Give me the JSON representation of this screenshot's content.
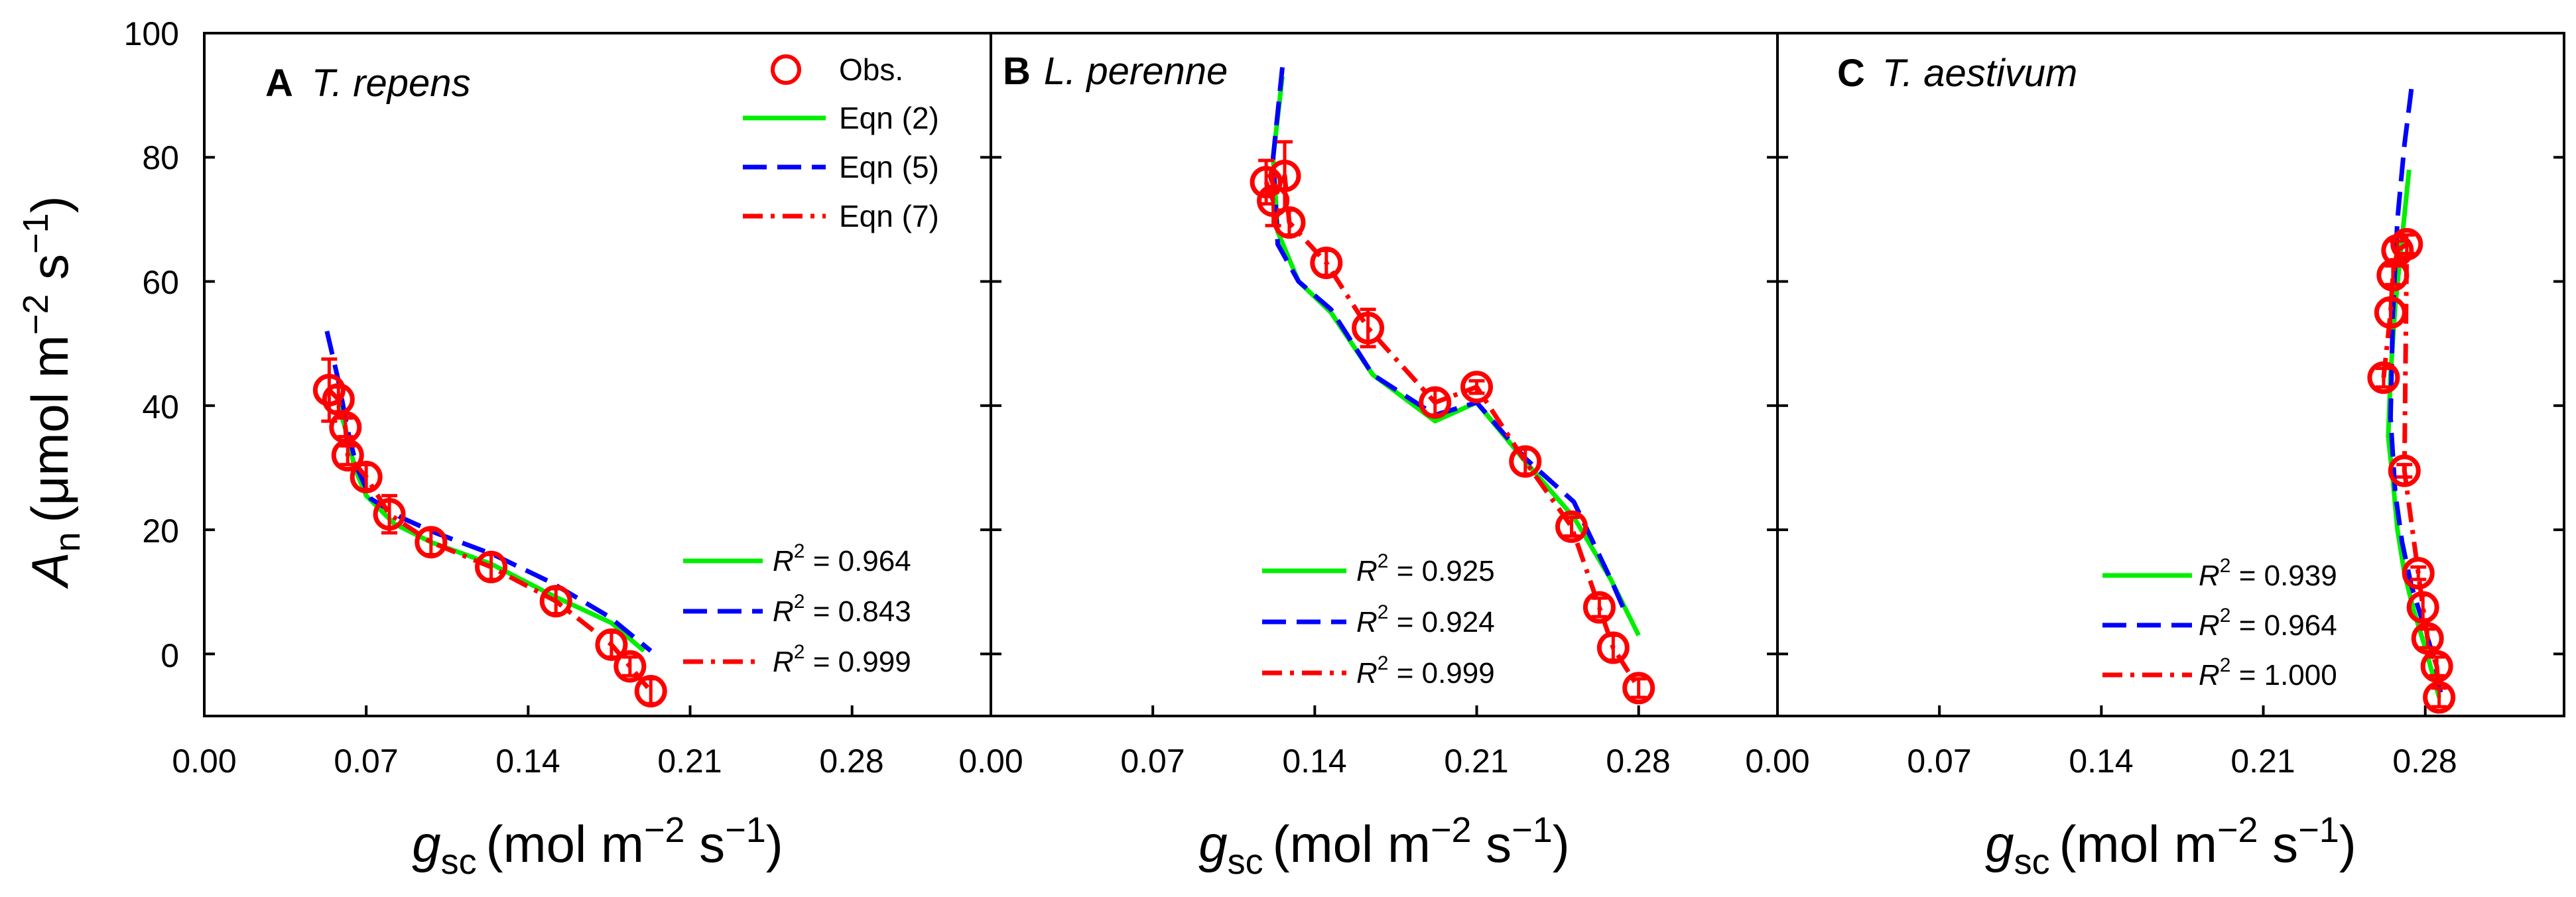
{
  "colors": {
    "obs": "#ff0000",
    "eqn2": "#00ee00",
    "eqn5": "#0000ff",
    "eqn7": "#ff0000",
    "frame": "#000000"
  },
  "legend": {
    "obs": "Obs.",
    "eqn2": "Eqn (2)",
    "eqn5": "Eqn (5)",
    "eqn7": "Eqn (7)"
  },
  "y_axis": {
    "label_symbol": "A",
    "label_sub": "n",
    "label_unit_pre": "(μmol m",
    "label_unit_sup1": "−2",
    "label_unit_mid": " s",
    "label_unit_sup2": "−1",
    "label_unit_post": ")",
    "ticks": [
      "100",
      "80",
      "60",
      "40",
      "20",
      "0"
    ]
  },
  "x_axis": {
    "label_symbol": "g",
    "label_sub": "sc",
    "label_unit_pre": "(mol m",
    "label_unit_sup1": "−2",
    "label_unit_mid": " s",
    "label_unit_sup2": "−1",
    "label_unit_post": ")",
    "ticks": [
      "0.00",
      "0.07",
      "0.14",
      "0.21",
      "0.28"
    ]
  },
  "panels": [
    {
      "letter": "A",
      "species": "T. repens",
      "r2": [
        {
          "prefix": "R",
          "sup": "2",
          "value": " = 0.964"
        },
        {
          "prefix": "R",
          "sup": "2",
          "value": " = 0.843"
        },
        {
          "prefix": "R",
          "sup": "2",
          "value": " = 0.999"
        }
      ]
    },
    {
      "letter": "B",
      "species": "L. perenne",
      "r2": [
        {
          "prefix": "R",
          "sup": "2",
          "value": " = 0.925"
        },
        {
          "prefix": "R",
          "sup": "2",
          "value": " = 0.924"
        },
        {
          "prefix": "R",
          "sup": "2",
          "value": " = 0.999"
        }
      ]
    },
    {
      "letter": "C",
      "species": "T. aestivum",
      "r2": [
        {
          "prefix": "R",
          "sup": "2",
          "value": " = 0.939"
        },
        {
          "prefix": "R",
          "sup": "2",
          "value": " = 0.964"
        },
        {
          "prefix": "R",
          "sup": "2",
          "value": " = 1.000"
        }
      ]
    }
  ],
  "chart_data": [
    {
      "type": "scatter",
      "title": "A T. repens",
      "xlabel": "g_sc (mol m^-2 s^-1)",
      "ylabel": "A_n (μmol m^-2 s^-1)",
      "xlim": [
        0,
        0.34
      ],
      "ylim": [
        -10,
        100
      ],
      "series": [
        {
          "name": "Obs.",
          "x": [
            0.054,
            0.058,
            0.061,
            0.062,
            0.07,
            0.08,
            0.098,
            0.124,
            0.152,
            0.176,
            0.184,
            0.193
          ],
          "y": [
            42.5,
            41.0,
            36.5,
            32.0,
            28.5,
            22.5,
            18.0,
            14.0,
            8.5,
            1.5,
            -2.0,
            -6.0
          ],
          "err": [
            5.0,
            2.0,
            1.5,
            1.5,
            2.0,
            3.0,
            2.0,
            2.0,
            2.0,
            2.0,
            1.5,
            2.0
          ]
        },
        {
          "name": "Eqn (2)",
          "x": [
            0.058,
            0.062,
            0.065,
            0.07,
            0.082,
            0.098,
            0.124,
            0.15,
            0.176,
            0.19
          ],
          "y": [
            40.0,
            35.0,
            30.0,
            25.5,
            21.0,
            18.0,
            14.5,
            9.5,
            5.0,
            0.5
          ]
        },
        {
          "name": "Eqn (5)",
          "x": [
            0.053,
            0.058,
            0.062,
            0.066,
            0.072,
            0.085,
            0.1,
            0.125,
            0.15,
            0.175,
            0.193
          ],
          "y": [
            52.0,
            44.0,
            36.0,
            30.0,
            25.0,
            22.0,
            19.5,
            16.0,
            11.5,
            6.0,
            0.5
          ]
        },
        {
          "name": "Eqn (7)",
          "x": [
            0.054,
            0.058,
            0.061,
            0.062,
            0.07,
            0.08,
            0.098,
            0.124,
            0.152,
            0.176,
            0.184,
            0.193
          ],
          "y": [
            42.5,
            41.0,
            36.5,
            32.0,
            28.5,
            22.5,
            18.0,
            14.0,
            8.5,
            1.5,
            -2.0,
            -6.0
          ]
        }
      ]
    },
    {
      "type": "scatter",
      "title": "B L. perenne",
      "xlabel": "g_sc (mol m^-2 s^-1)",
      "ylabel": "A_n (μmol m^-2 s^-1)",
      "xlim": [
        0,
        0.34
      ],
      "ylim": [
        -10,
        100
      ],
      "series": [
        {
          "name": "Obs.",
          "x": [
            0.119,
            0.122,
            0.127,
            0.129,
            0.145,
            0.163,
            0.192,
            0.21,
            0.231,
            0.251,
            0.263,
            0.269,
            0.28
          ],
          "y": [
            76.0,
            73.0,
            77.0,
            69.5,
            63.0,
            52.5,
            40.5,
            43.0,
            31.0,
            20.5,
            7.5,
            1.0,
            -5.5
          ],
          "err": [
            3.5,
            4.0,
            5.5,
            2.0,
            2.0,
            3.0,
            2.0,
            1.0,
            2.0,
            1.5,
            1.5,
            2.0,
            1.5
          ]
        },
        {
          "name": "Eqn (2)",
          "x": [
            0.126,
            0.122,
            0.124,
            0.133,
            0.147,
            0.165,
            0.192,
            0.21,
            0.231,
            0.252,
            0.268,
            0.28
          ],
          "y": [
            93.0,
            80.0,
            68.0,
            60.0,
            55.0,
            45.0,
            37.5,
            40.5,
            31.0,
            22.0,
            12.0,
            3.0
          ]
        },
        {
          "name": "Eqn (5)",
          "x": [
            0.126,
            0.122,
            0.124,
            0.133,
            0.147,
            0.165,
            0.192,
            0.21,
            0.231,
            0.252,
            0.268,
            0.275
          ],
          "y": [
            94.5,
            80.0,
            66.0,
            60.0,
            55.5,
            45.0,
            38.5,
            40.5,
            31.5,
            24.5,
            12.0,
            6.0
          ]
        },
        {
          "name": "Eqn (7)",
          "x": [
            0.119,
            0.122,
            0.127,
            0.129,
            0.145,
            0.163,
            0.192,
            0.21,
            0.231,
            0.251,
            0.263,
            0.269,
            0.28
          ],
          "y": [
            76.0,
            73.0,
            77.0,
            69.5,
            63.0,
            52.5,
            40.5,
            43.0,
            31.0,
            20.5,
            7.5,
            1.0,
            -5.5
          ]
        }
      ]
    },
    {
      "type": "scatter",
      "title": "C T. aestivum",
      "xlabel": "g_sc (mol m^-2 s^-1)",
      "ylabel": "A_n (μmol m^-2 s^-1)",
      "xlim": [
        0,
        0.34
      ],
      "ylim": [
        -10,
        100
      ],
      "series": [
        {
          "name": "Obs.",
          "x": [
            0.262,
            0.265,
            0.266,
            0.268,
            0.272,
            0.271,
            0.277,
            0.279,
            0.281,
            0.285,
            0.286
          ],
          "y": [
            44.5,
            55.0,
            61.0,
            65.0,
            66.0,
            29.5,
            13.0,
            7.5,
            2.5,
            -2.0,
            -7.0
          ],
          "err": [
            1.5,
            2.0,
            1.5,
            1.5,
            1.5,
            1.0,
            1.0,
            2.0,
            1.5,
            1.5,
            1.5
          ]
        },
        {
          "name": "Eqn (2)",
          "x": [
            0.273,
            0.27,
            0.267,
            0.265,
            0.264,
            0.266,
            0.268,
            0.271,
            0.275,
            0.28,
            0.286
          ],
          "y": [
            78.0,
            67.0,
            56.0,
            45.0,
            35.0,
            28.0,
            20.0,
            13.0,
            7.0,
            1.0,
            -7.0
          ]
        },
        {
          "name": "Eqn (5)",
          "x": [
            0.274,
            0.271,
            0.268,
            0.266,
            0.265,
            0.267,
            0.27,
            0.274,
            0.279,
            0.284,
            0.287
          ],
          "y": [
            91.0,
            82.0,
            70.0,
            55.0,
            38.0,
            26.0,
            18.0,
            11.0,
            5.0,
            -1.0,
            -7.0
          ]
        },
        {
          "name": "Eqn (7)",
          "x": [
            0.262,
            0.265,
            0.266,
            0.268,
            0.272,
            0.271,
            0.277,
            0.279,
            0.281,
            0.285,
            0.286
          ],
          "y": [
            44.5,
            55.0,
            61.0,
            65.0,
            66.0,
            29.5,
            13.0,
            7.5,
            2.5,
            -2.0,
            -7.0
          ]
        }
      ]
    }
  ]
}
